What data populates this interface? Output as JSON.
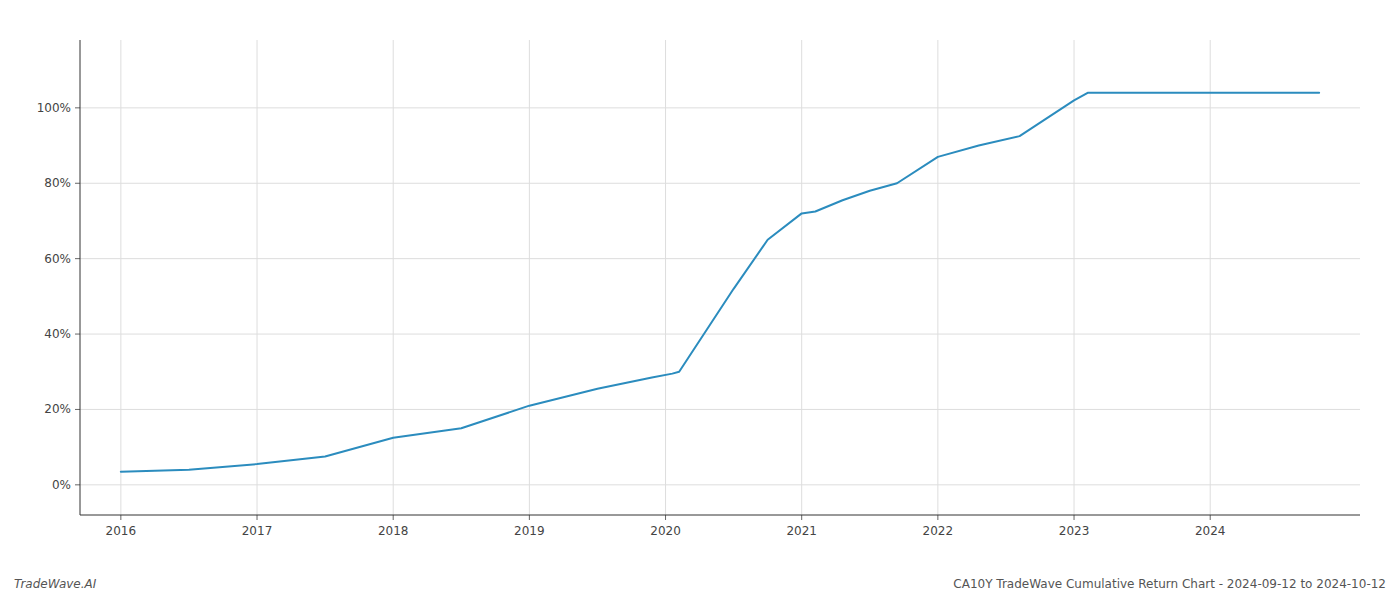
{
  "chart_data": {
    "type": "line",
    "title": "CA10Y TradeWave Cumulative Return Chart - 2024-09-12 to 2024-10-12",
    "annotations": [
      "TradeWave.AI"
    ],
    "x": [
      2016.0,
      2016.5,
      2017.0,
      2017.5,
      2018.0,
      2018.5,
      2019.0,
      2019.5,
      2019.9,
      2020.05,
      2020.1,
      2020.5,
      2020.75,
      2021.0,
      2021.1,
      2021.3,
      2021.5,
      2021.7,
      2022.0,
      2022.3,
      2022.6,
      2023.0,
      2023.1,
      2023.5,
      2024.0,
      2024.8
    ],
    "values": [
      3.5,
      4.0,
      5.5,
      7.5,
      12.5,
      15.0,
      21.0,
      25.5,
      28.5,
      29.5,
      30.0,
      52.0,
      65.0,
      72.0,
      72.5,
      75.5,
      78.0,
      80.0,
      87.0,
      90.0,
      92.5,
      102.0,
      104.0,
      104.0,
      104.0,
      104.0
    ],
    "color": "#2b8cbe",
    "xlim": [
      2015.7,
      2025.1
    ],
    "ylim": [
      -8,
      118
    ],
    "xticks": [
      2016,
      2017,
      2018,
      2019,
      2020,
      2021,
      2022,
      2023,
      2024
    ],
    "yticks": [
      {
        "value": 0,
        "label": "0%"
      },
      {
        "value": 20,
        "label": "20%"
      },
      {
        "value": 40,
        "label": "40%"
      },
      {
        "value": 60,
        "label": "60%"
      },
      {
        "value": 80,
        "label": "80%"
      },
      {
        "value": 100,
        "label": "100%"
      }
    ],
    "grid": true
  }
}
